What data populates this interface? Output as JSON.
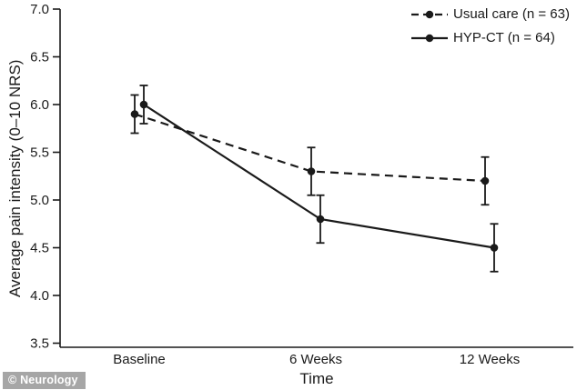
{
  "figure": {
    "watermark": "© Neurology"
  },
  "chart_data": {
    "type": "line",
    "title": "",
    "xlabel": "Time",
    "ylabel": "Average pain intensity (0–10 NRS)",
    "categories": [
      "Baseline",
      "6 Weeks",
      "12 Weeks"
    ],
    "series": [
      {
        "name": "Usual care (n = 63)",
        "line_style": "dashed",
        "marker": "filled-circle",
        "color": "#1a1a1a",
        "values": [
          5.9,
          5.3,
          5.2
        ],
        "error_bars": [
          0.2,
          0.25,
          0.25
        ]
      },
      {
        "name": "HYP-CT (n = 64)",
        "line_style": "solid",
        "marker": "filled-circle",
        "color": "#1a1a1a",
        "values": [
          6.0,
          4.8,
          4.5
        ],
        "error_bars": [
          0.2,
          0.25,
          0.25
        ]
      }
    ],
    "ylim": [
      3.5,
      7.0
    ],
    "ytick_step": 0.5,
    "ytick_labels": [
      "3.5",
      "4.0",
      "4.5",
      "5.0",
      "5.5",
      "6.0",
      "6.5",
      "7.0"
    ],
    "grid": false,
    "legend_position": "top-right",
    "axis_color": "#1a1a1a",
    "background_color": "#ffffff"
  }
}
